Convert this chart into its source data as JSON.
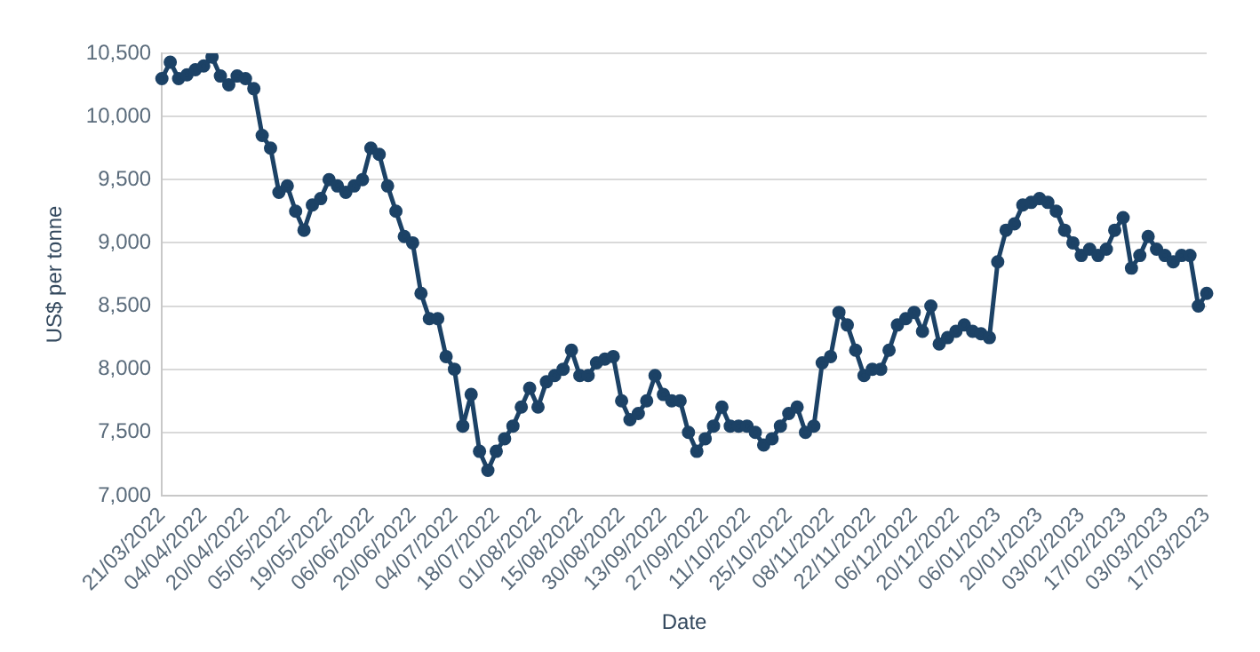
{
  "chart_data": {
    "type": "line",
    "xlabel": "Date",
    "ylabel": "US$ per tonne",
    "grid": "y",
    "marker": "circle",
    "categories": [
      "21/03/2022",
      null,
      null,
      null,
      null,
      "04/04/2022",
      null,
      null,
      null,
      null,
      "20/04/2022",
      null,
      null,
      null,
      null,
      "05/05/2022",
      null,
      null,
      null,
      null,
      "19/05/2022",
      null,
      null,
      null,
      null,
      "06/06/2022",
      null,
      null,
      null,
      null,
      "20/06/2022",
      null,
      null,
      null,
      null,
      "04/07/2022",
      null,
      null,
      null,
      null,
      "18/07/2022",
      null,
      null,
      null,
      null,
      "01/08/2022",
      null,
      null,
      null,
      null,
      "15/08/2022",
      null,
      null,
      null,
      null,
      "30/08/2022",
      null,
      null,
      null,
      null,
      "13/09/2022",
      null,
      null,
      null,
      null,
      "27/09/2022",
      null,
      null,
      null,
      null,
      "11/10/2022",
      null,
      null,
      null,
      null,
      "25/10/2022",
      null,
      null,
      null,
      null,
      "08/11/2022",
      null,
      null,
      null,
      null,
      "22/11/2022",
      null,
      null,
      null,
      null,
      "06/12/2022",
      null,
      null,
      null,
      null,
      "20/12/2022",
      null,
      null,
      null,
      null,
      "06/01/2023",
      null,
      null,
      null,
      null,
      "20/01/2023",
      null,
      null,
      null,
      null,
      "03/02/2023",
      null,
      null,
      null,
      null,
      "17/02/2023",
      null,
      null,
      null,
      null,
      "03/03/2023",
      null,
      null,
      null,
      null,
      "17/03/2023"
    ],
    "series": [
      {
        "color": "#1c4266",
        "values": [
          10300,
          10430,
          10300,
          10330,
          10370,
          10400,
          10470,
          10320,
          10250,
          10320,
          10300,
          10220,
          9850,
          9750,
          9400,
          9450,
          9250,
          9100,
          9300,
          9350,
          9500,
          9450,
          9400,
          9450,
          9500,
          9750,
          9700,
          9450,
          9250,
          9050,
          9000,
          8600,
          8400,
          8400,
          8100,
          8000,
          7550,
          7800,
          7350,
          7200,
          7350,
          7450,
          7550,
          7700,
          7850,
          7700,
          7900,
          7950,
          8000,
          8150,
          7950,
          7950,
          8050,
          8080,
          8100,
          7750,
          7600,
          7650,
          7750,
          7950,
          7800,
          7750,
          7750,
          7500,
          7350,
          7450,
          7550,
          7700,
          7550,
          7550,
          7550,
          7500,
          7400,
          7450,
          7550,
          7650,
          7700,
          7500,
          7550,
          8050,
          8100,
          8450,
          8350,
          8150,
          7950,
          8000,
          8000,
          8150,
          8350,
          8400,
          8450,
          8300,
          8500,
          8200,
          8250,
          8300,
          8350,
          8300,
          8280,
          8250,
          8850,
          9100,
          9150,
          9300,
          9320,
          9350,
          9320,
          9250,
          9100,
          9000,
          8900,
          8950,
          8900,
          8950,
          9100,
          9200,
          8800,
          8900,
          9050,
          8950,
          8900,
          8850,
          8900,
          8900,
          8500,
          8600
        ]
      }
    ],
    "ylim": [
      7000,
      10500
    ],
    "yticks": [
      {
        "value": 7000,
        "label": "7,000"
      },
      {
        "value": 7500,
        "label": "7,500"
      },
      {
        "value": 8000,
        "label": "8,000"
      },
      {
        "value": 8500,
        "label": "8,500"
      },
      {
        "value": 9000,
        "label": "9,000"
      },
      {
        "value": 9500,
        "label": "9,500"
      },
      {
        "value": 10000,
        "label": "10,000"
      },
      {
        "value": 10500,
        "label": "10,500"
      }
    ]
  }
}
